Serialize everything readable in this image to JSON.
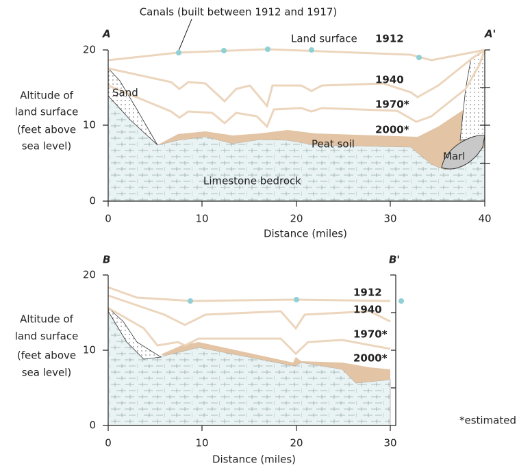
{
  "annotation": "Canals (built between 1912 and 1917)",
  "footnote": "*estimated",
  "panels": [
    {
      "start_label": "A",
      "end_label": "A'",
      "y_axis_label": [
        "Altitude of",
        "land surface",
        "(feet above",
        "sea level)"
      ],
      "x_axis_label": "Distance (miles)",
      "x_ticks": [
        "0",
        "10",
        "20",
        "30",
        "40"
      ],
      "y_ticks": [
        "0",
        "10",
        "20"
      ],
      "surfaces": [
        "1912",
        "1940",
        "1970*",
        "2000*"
      ],
      "labels": [
        "Land surface",
        "Sand",
        "Peat soil",
        "Marl",
        "Limestone bedrock"
      ]
    },
    {
      "start_label": "B",
      "end_label": "B'",
      "y_axis_label": [
        "Altitude of",
        "land surface",
        "(feet above",
        "sea level)"
      ],
      "x_axis_label": "Distance (miles)",
      "x_ticks": [
        "0",
        "10",
        "20",
        "30"
      ],
      "y_ticks": [
        "0",
        "10",
        "20"
      ],
      "surfaces": [
        "1912",
        "1940",
        "1970*",
        "2000*"
      ]
    }
  ]
}
